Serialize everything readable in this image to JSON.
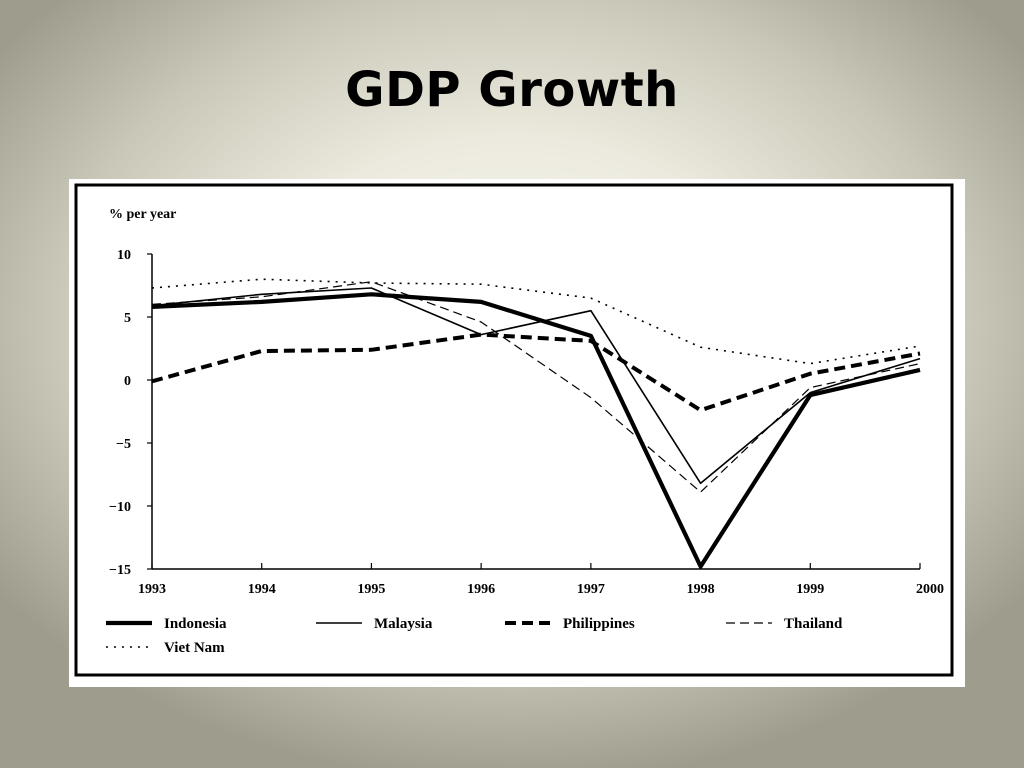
{
  "slide": {
    "title": "GDP Growth"
  },
  "chart_data": {
    "type": "line",
    "ylabel": "% per year",
    "xlabel": "",
    "x": [
      "1993",
      "1994",
      "1995",
      "1996",
      "1997",
      "1998",
      "1999",
      "2000"
    ],
    "ylim": [
      -15,
      10
    ],
    "yticks": [
      "10",
      "5",
      "0",
      "−5",
      "−10",
      "−15"
    ],
    "legend_position": "bottom",
    "series": [
      {
        "name": "Indonesia",
        "style": "thick-solid",
        "values": [
          5.8,
          6.2,
          6.8,
          6.2,
          3.5,
          -14.8,
          -1.2,
          0.8
        ]
      },
      {
        "name": "Malaysia",
        "style": "thin-solid",
        "values": [
          5.9,
          6.8,
          7.3,
          3.6,
          5.5,
          -8.2,
          -1.0,
          1.7
        ]
      },
      {
        "name": "Philippines",
        "style": "thick-dashed",
        "values": [
          -0.1,
          2.3,
          2.4,
          3.6,
          3.1,
          -2.4,
          0.5,
          2.1
        ]
      },
      {
        "name": "Thailand",
        "style": "thin-dashed",
        "values": [
          6.0,
          6.6,
          7.8,
          4.6,
          -1.4,
          -8.9,
          -0.6,
          1.3
        ]
      },
      {
        "name": "Viet Nam",
        "style": "dotted",
        "values": [
          7.3,
          8.0,
          7.7,
          7.6,
          6.5,
          2.6,
          1.3,
          2.7
        ]
      }
    ]
  }
}
